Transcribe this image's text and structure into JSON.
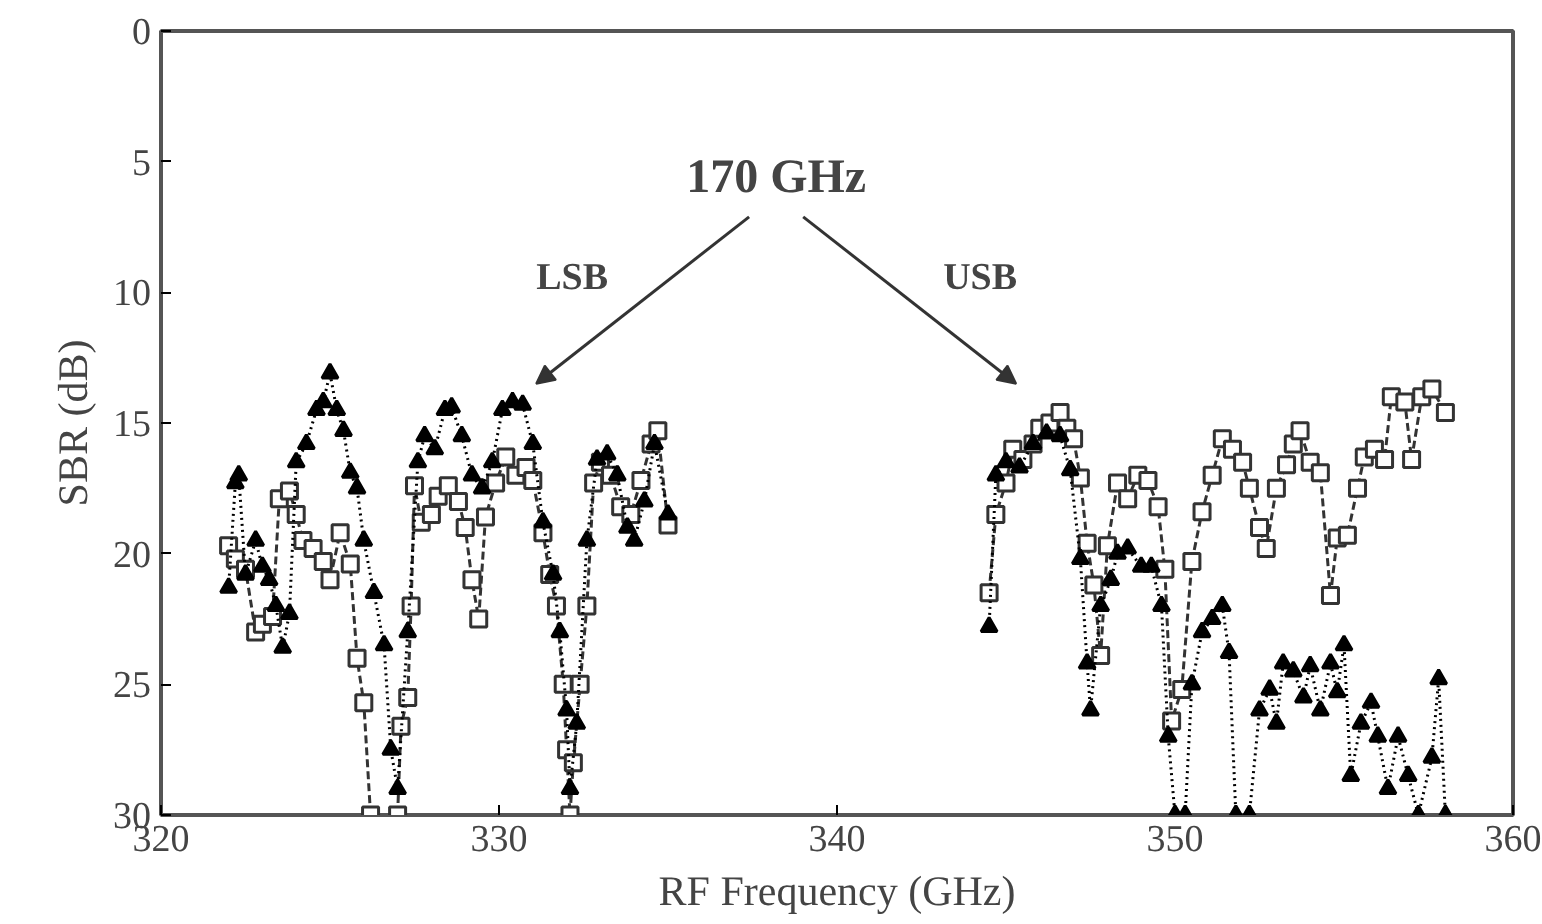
{
  "chart_data": {
    "type": "line",
    "xlabel": "RF Frequency (GHz)",
    "ylabel": "SBR (dB)",
    "xlim": [
      320,
      360
    ],
    "ylim": [
      30,
      0
    ],
    "xticks": [
      320,
      330,
      340,
      350,
      360
    ],
    "yticks": [
      0,
      5,
      10,
      15,
      20,
      25,
      30
    ],
    "grid": false,
    "annotations": [
      "170 GHz",
      "LSB",
      "USB"
    ],
    "series": [
      {
        "color": "#333333",
        "marker": "square",
        "line_style": "dashed",
        "x": [
          322.0,
          322.2,
          322.5,
          322.8,
          323.0,
          323.3,
          323.5,
          323.8,
          324.0,
          324.2,
          324.5,
          324.8,
          325.0,
          325.3,
          325.6,
          325.8,
          326.0,
          326.2,
          326.6,
          327.0,
          327.1,
          327.3,
          327.4,
          327.5,
          327.7,
          328.0,
          328.2,
          328.5,
          328.8,
          329.0,
          329.2,
          329.4,
          329.6,
          329.9,
          330.2,
          330.5,
          330.8,
          331.0,
          331.3,
          331.5,
          331.7,
          331.9,
          332.0,
          332.1,
          332.2,
          332.4,
          332.6,
          332.8,
          333.0,
          333.3,
          333.6,
          333.9,
          334.2,
          334.5,
          334.7,
          335.0,
          340.0,
          344.5,
          344.7,
          345.0,
          345.2,
          345.5,
          345.8,
          346.0,
          346.3,
          346.6,
          346.8,
          347.0,
          347.2,
          347.4,
          347.6,
          347.8,
          348.0,
          348.3,
          348.6,
          348.9,
          349.2,
          349.5,
          349.7,
          349.9,
          350.2,
          350.5,
          350.8,
          351.1,
          351.4,
          351.7,
          352.0,
          352.2,
          352.5,
          352.7,
          353.0,
          353.3,
          353.5,
          353.7,
          354.0,
          354.3,
          354.6,
          354.8,
          355.1,
          355.4,
          355.6,
          355.9,
          356.2,
          356.4,
          356.8,
          357.0,
          357.3,
          357.6,
          358.0
        ],
        "values": [
          19.7,
          20.2,
          20.6,
          23.0,
          22.7,
          22.4,
          17.9,
          17.6,
          18.5,
          19.5,
          19.8,
          20.3,
          21.0,
          19.2,
          20.4,
          24.0,
          25.7,
          30,
          null,
          30,
          26.6,
          25.5,
          22.0,
          17.4,
          18.8,
          18.5,
          17.8,
          17.4,
          18.0,
          19.0,
          21.0,
          22.5,
          18.6,
          17.3,
          16.3,
          17.0,
          16.7,
          17.2,
          19.2,
          20.8,
          22.0,
          25.0,
          27.5,
          30,
          28.0,
          25.0,
          22.0,
          17.3,
          16.5,
          17.0,
          18.2,
          18.5,
          17.2,
          15.8,
          15.3,
          18.9,
          null,
          21.5,
          18.5,
          17.3,
          16.0,
          16.4,
          15.8,
          15.2,
          15.0,
          14.6,
          15.2,
          15.6,
          17.1,
          19.6,
          21.2,
          23.9,
          19.7,
          17.3,
          17.9,
          17.0,
          17.2,
          18.2,
          20.6,
          26.4,
          25.2,
          20.3,
          18.4,
          17.0,
          15.6,
          16.0,
          16.5,
          17.5,
          19.0,
          19.8,
          17.5,
          16.6,
          15.8,
          15.3,
          16.5,
          16.9,
          21.6,
          19.4,
          19.3,
          17.5,
          16.3,
          16.0,
          16.4,
          14.0,
          14.2,
          16.4,
          14.0,
          13.7,
          14.6
        ]
      },
      {
        "color": "#000000",
        "marker": "triangle",
        "line_style": "dotted",
        "x": [
          322.0,
          322.2,
          322.3,
          322.5,
          322.8,
          323.0,
          323.2,
          323.4,
          323.6,
          323.8,
          324.0,
          324.3,
          324.6,
          324.8,
          325.0,
          325.2,
          325.4,
          325.6,
          325.8,
          326.0,
          326.3,
          326.6,
          326.8,
          327.0,
          327.3,
          327.6,
          327.8,
          328.1,
          328.4,
          328.6,
          328.9,
          329.2,
          329.5,
          329.8,
          330.1,
          330.4,
          330.7,
          331.0,
          331.3,
          331.6,
          331.8,
          332.0,
          332.1,
          332.3,
          332.6,
          332.9,
          333.2,
          333.5,
          333.8,
          334.0,
          334.3,
          334.6,
          335.0,
          340.0,
          344.5,
          344.7,
          345.0,
          345.4,
          345.8,
          346.2,
          346.6,
          346.9,
          347.2,
          347.4,
          347.5,
          347.8,
          348.1,
          348.3,
          348.6,
          349.0,
          349.3,
          349.6,
          349.8,
          350.0,
          350.2,
          350.3,
          350.5,
          350.8,
          351.1,
          351.4,
          351.6,
          351.8,
          352.0,
          352.2,
          352.5,
          352.8,
          353.0,
          353.2,
          353.5,
          353.8,
          354.0,
          354.3,
          354.6,
          354.8,
          355.0,
          355.2,
          355.5,
          355.8,
          356.0,
          356.3,
          356.6,
          356.9,
          357.2,
          357.6,
          357.8,
          358.0
        ],
        "values": [
          21.3,
          17.3,
          17.0,
          20.8,
          19.5,
          20.5,
          21.0,
          22.0,
          23.6,
          22.3,
          16.5,
          15.8,
          14.5,
          14.2,
          13.1,
          14.5,
          15.3,
          16.9,
          17.5,
          19.5,
          21.5,
          23.5,
          27.5,
          29.0,
          23.0,
          16.5,
          15.5,
          16.0,
          14.5,
          14.4,
          15.5,
          17.0,
          17.5,
          16.5,
          14.5,
          14.2,
          14.3,
          15.8,
          18.8,
          20.8,
          23.0,
          26.0,
          29.0,
          26.5,
          19.5,
          16.4,
          16.2,
          17.0,
          19.0,
          19.5,
          18.0,
          15.8,
          18.5,
          null,
          22.8,
          17.0,
          16.5,
          16.7,
          15.8,
          15.4,
          15.5,
          16.8,
          20.2,
          24.2,
          26.0,
          22.0,
          21.0,
          20.0,
          19.8,
          20.5,
          20.5,
          22.0,
          27.0,
          30,
          null,
          30,
          25.0,
          23.0,
          22.5,
          22.0,
          23.8,
          30,
          null,
          30,
          26.0,
          25.2,
          26.5,
          24.2,
          24.5,
          25.5,
          24.3,
          26.0,
          24.2,
          25.3,
          23.5,
          28.5,
          26.5,
          25.7,
          27.0,
          29.0,
          27.0,
          28.5,
          30,
          27.8,
          24.8,
          30
        ]
      }
    ]
  }
}
